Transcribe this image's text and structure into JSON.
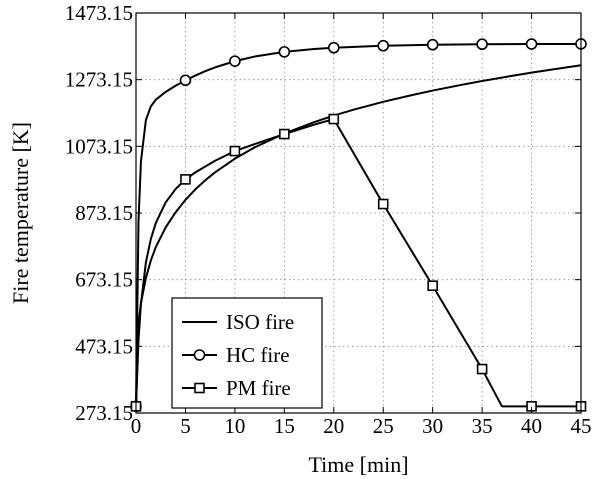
{
  "chart_data": {
    "type": "line",
    "title": "",
    "xlabel": "Time [min]",
    "ylabel": "Fire temperature [K]",
    "xlim": [
      0,
      45
    ],
    "ylim": [
      273.15,
      1473.15
    ],
    "xticks": [
      0,
      5,
      10,
      15,
      20,
      25,
      30,
      35,
      40,
      45
    ],
    "yticks": [
      273.15,
      473.15,
      673.15,
      873.15,
      1073.15,
      1273.15,
      1473.15
    ],
    "xtick_labels": [
      "0",
      "5",
      "10",
      "15",
      "20",
      "25",
      "30",
      "35",
      "40",
      "45"
    ],
    "ytick_labels": [
      "273.15",
      "473.15",
      "673.15",
      "873.15",
      "1073.15",
      "1273.15",
      "1473.15"
    ],
    "grid": true,
    "legend_position": "bottom-left",
    "series": [
      {
        "name": "ISO fire",
        "marker": "none",
        "x": [
          0,
          0.25,
          0.5,
          1,
          1.5,
          2,
          3,
          4,
          5,
          6,
          7,
          8,
          10,
          12,
          15,
          18,
          20,
          22,
          25,
          28,
          30,
          33,
          35,
          38,
          40,
          42,
          45
        ],
        "y": [
          293.15,
          542.2,
          602.5,
          678.4,
          730.4,
          771.0,
          829.8,
          875.2,
          912.6,
          944.0,
          971.2,
          995.2,
          1036.2,
          1070.1,
          1111.4,
          1145.7,
          1165.4,
          1183.1,
          1206.7,
          1227.5,
          1240.4,
          1258.1,
          1269.2,
          1284.6,
          1294.3,
          1303.4,
          1316.3
        ]
      },
      {
        "name": "HC fire",
        "marker": "circle",
        "x": [
          0,
          0.25,
          0.5,
          1,
          1.5,
          2,
          3,
          4,
          5,
          6,
          7,
          8,
          10,
          12,
          15,
          18,
          20,
          25,
          30,
          35,
          40,
          45
        ],
        "y": [
          293.15,
          846.0,
          1028.0,
          1152.0,
          1193.0,
          1213.0,
          1236.5,
          1255.0,
          1271.2,
          1285.5,
          1298.5,
          1310.0,
          1328.8,
          1342.5,
          1356.5,
          1365.0,
          1369.0,
          1375.0,
          1378.0,
          1379.5,
          1380.0,
          1380.3
        ],
        "marker_x": [
          0,
          5,
          10,
          15,
          20,
          25,
          30,
          35,
          40,
          45
        ],
        "marker_y": [
          293.15,
          1271.2,
          1328.8,
          1356.5,
          1369.0,
          1375.0,
          1378.0,
          1379.5,
          1380.0,
          1380.3
        ]
      },
      {
        "name": "PM fire",
        "marker": "square",
        "x": [
          0,
          0.25,
          0.5,
          1,
          1.5,
          2,
          3,
          4,
          5,
          6,
          8,
          10,
          12,
          15,
          18,
          20,
          25,
          30,
          35,
          37,
          40,
          45
        ],
        "y": [
          293.15,
          490.0,
          600.0,
          725.0,
          795.0,
          843.0,
          905.0,
          945.0,
          974.0,
          995.0,
          1030.0,
          1059.0,
          1080.0,
          1110.0,
          1138.0,
          1155.0,
          900.0,
          655.0,
          405.0,
          293.15,
          293.15,
          293.15
        ],
        "marker_x": [
          0,
          5,
          10,
          15,
          20,
          25,
          30,
          35,
          40,
          45
        ],
        "marker_y": [
          293.15,
          974.0,
          1059.0,
          1110.0,
          1155.0,
          900.0,
          655.0,
          405.0,
          293.15,
          293.15
        ]
      }
    ]
  }
}
